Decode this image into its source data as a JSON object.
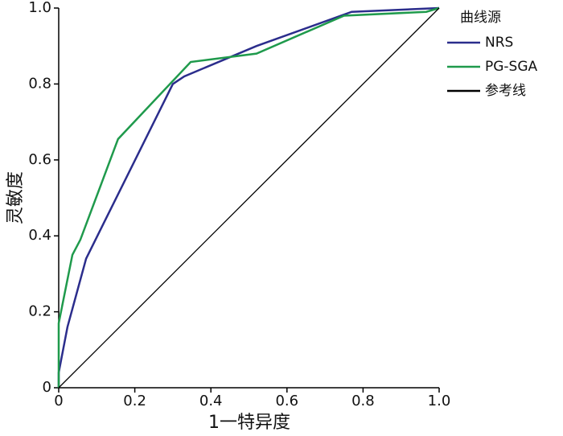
{
  "chart_data": {
    "type": "line",
    "x_label": "1一特异度",
    "y_label": "灵敏度",
    "legend_title": "曲线源",
    "legend": "right",
    "xlim": [
      0,
      1
    ],
    "ylim": [
      0,
      1
    ],
    "xticks": [
      0,
      0.2,
      0.4,
      0.6,
      0.8,
      {
        "value": 1,
        "label": "1.0"
      }
    ],
    "yticks": [
      0,
      0.2,
      0.4,
      0.6,
      0.8,
      {
        "value": 1,
        "label": "1.0"
      }
    ],
    "series": [
      {
        "name": "NRS",
        "color": "#2b2d8c",
        "x": [
          0,
          0,
          0.023,
          0.072,
          0.3,
          0.33,
          0.52,
          0.77,
          1
        ],
        "values": [
          0,
          0.04,
          0.16,
          0.34,
          0.8,
          0.82,
          0.9,
          0.99,
          1
        ]
      },
      {
        "name": "PG-SGA",
        "color": "#1f9a4c",
        "x": [
          0,
          0,
          0.01,
          0.036,
          0.057,
          0.156,
          0.347,
          0.52,
          0.75,
          0.966,
          1
        ],
        "values": [
          0,
          0.17,
          0.22,
          0.35,
          0.39,
          0.655,
          0.858,
          0.88,
          0.98,
          0.99,
          1
        ]
      },
      {
        "name": "参考线",
        "color": "#000000",
        "x": [
          0,
          1
        ],
        "values": [
          0,
          1
        ]
      }
    ]
  }
}
